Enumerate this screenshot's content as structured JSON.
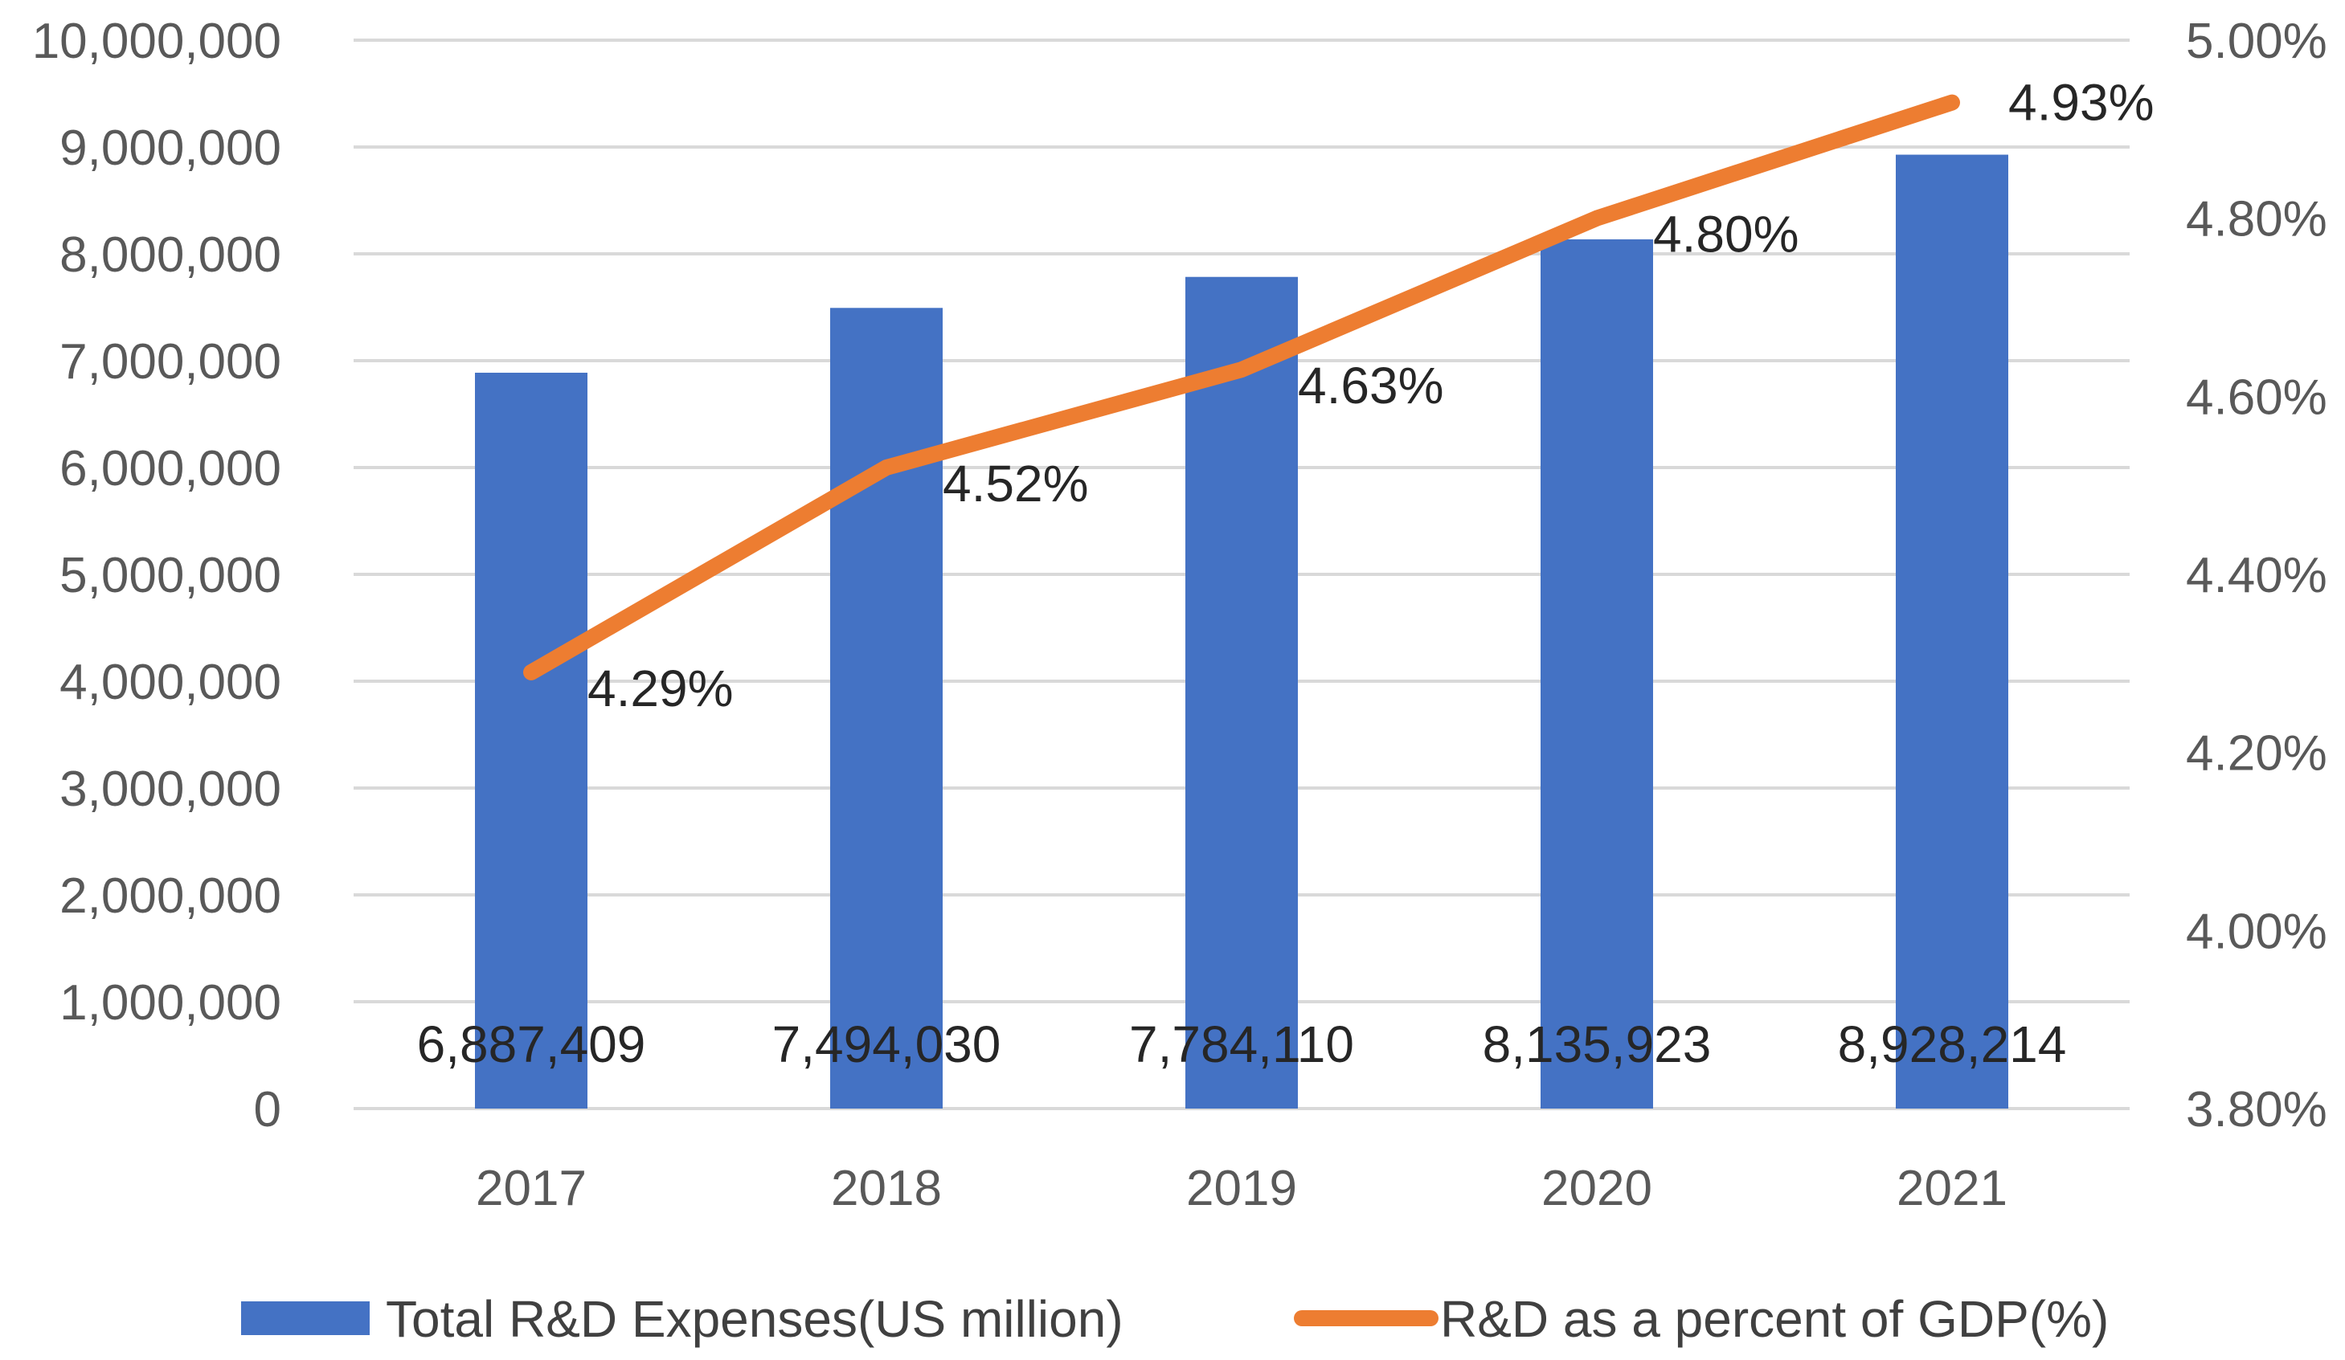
{
  "chart_data": {
    "type": "bar",
    "categories": [
      "2017",
      "2018",
      "2019",
      "2020",
      "2021"
    ],
    "series": [
      {
        "name": "Total R&D Expenses(US million)",
        "type": "bar",
        "axis": "left",
        "values": [
          6887409,
          7494030,
          7784110,
          8135923,
          8928214
        ],
        "data_labels": [
          "6,887,409",
          "7,494,030",
          "7,784,110",
          "8,135,923",
          "8,928,214"
        ],
        "color": "#4472c4"
      },
      {
        "name": "R&D as a percent of GDP(%)",
        "type": "line",
        "axis": "right",
        "values": [
          4.29,
          4.52,
          4.63,
          4.8,
          4.93
        ],
        "data_labels": [
          "4.29%",
          "4.52%",
          "4.63%",
          "4.80%",
          "4.93%"
        ],
        "color": "#ed7d31"
      }
    ],
    "y_left": {
      "min": 0,
      "max": 10000000,
      "tick_values": [
        0,
        1000000,
        2000000,
        3000000,
        4000000,
        5000000,
        6000000,
        7000000,
        8000000,
        9000000,
        10000000
      ],
      "tick_labels": [
        "0",
        "1,000,000",
        "2,000,000",
        "3,000,000",
        "4,000,000",
        "5,000,000",
        "6,000,000",
        "7,000,000",
        "8,000,000",
        "9,000,000",
        "10,000,000"
      ]
    },
    "y_right": {
      "min": 3.8,
      "max": 5.0,
      "tick_values": [
        3.8,
        4.0,
        4.2,
        4.4,
        4.6,
        4.8,
        5.0
      ],
      "tick_labels": [
        "3.80%",
        "4.00%",
        "4.20%",
        "4.40%",
        "4.60%",
        "4.80%",
        "5.00%"
      ]
    },
    "grid": true,
    "legend_position": "bottom",
    "title": "",
    "xlabel": "",
    "ylabel": ""
  }
}
